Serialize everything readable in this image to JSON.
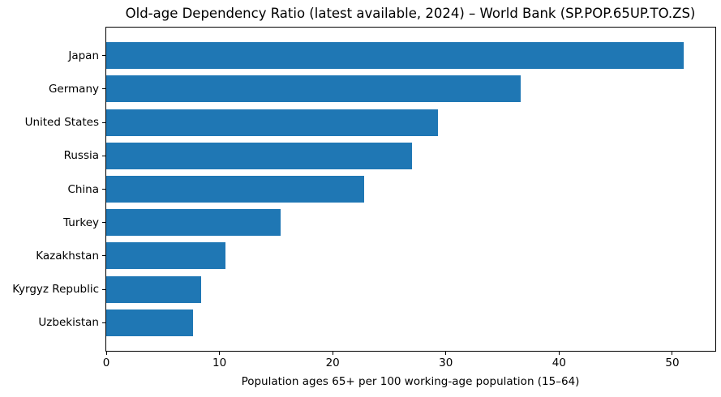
{
  "figure": {
    "background": "#ffffff",
    "text_color": "#000000"
  },
  "chart_data": {
    "type": "bar",
    "orientation": "horizontal",
    "title": "Old-age Dependency Ratio (latest available, 2024) – World Bank (SP.POP.65UP.TO.ZS)",
    "xlabel": "Population ages 65+ per 100 working-age population (15–64)",
    "ylabel": "",
    "categories": [
      "Japan",
      "Germany",
      "United States",
      "Russia",
      "China",
      "Turkey",
      "Kazakhstan",
      "Kyrgyz Republic",
      "Uzbekistan"
    ],
    "values": [
      51.0,
      36.6,
      29.3,
      27.0,
      22.8,
      15.4,
      10.5,
      8.4,
      7.7
    ],
    "xticks": [
      0,
      10,
      20,
      30,
      40,
      50
    ],
    "xlim": [
      0,
      53.8
    ],
    "bar_color": "#1f77b4",
    "bar_height_fraction": 0.8,
    "grid": false,
    "legend": null
  }
}
